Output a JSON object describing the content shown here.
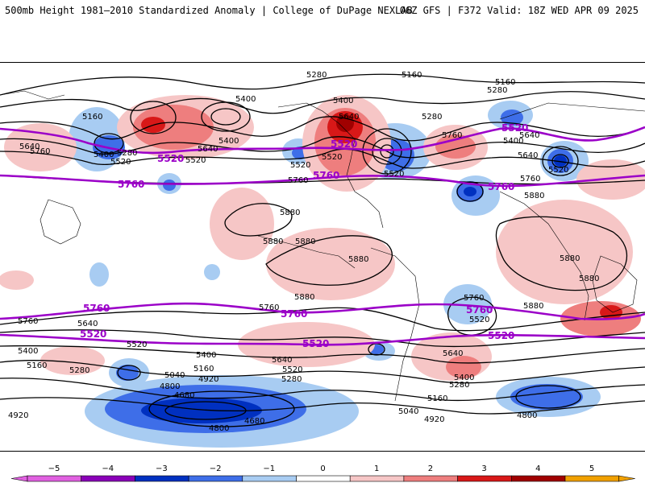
{
  "header": {
    "left": "500mb Height 1981–2010 Standardized Anomaly | College of DuPage NEXLAB",
    "right": "06Z GFS | F372 Valid: 18Z WED APR 09 2025"
  },
  "colors": {
    "c_neg5": "#e060e0",
    "c_neg4": "#8a00b8",
    "c_neg3": "#0030c0",
    "c_neg2": "#3e6ee8",
    "c_neg1": "#a8ccf2",
    "c_0": "#ffffff",
    "c_pos1": "#f6c6c6",
    "c_pos2": "#ee7e7e",
    "c_pos3": "#d81818",
    "c_pos4": "#a00000",
    "c_pos5": "#f0a000",
    "contour": "#000000",
    "highlight_contour": "#9b00c8"
  },
  "colorbar": {
    "ticks": [
      "−5",
      "−4",
      "−3",
      "−2",
      "−1",
      "0",
      "1",
      "2",
      "3",
      "4",
      "5"
    ]
  },
  "contour_labels": {
    "l5280a": "5280",
    "l5160a": "5160",
    "l5160b": "5160",
    "l5280b": "5280",
    "l5400a": "5400",
    "l5400b": "5400",
    "l5640a": "5640",
    "l5280c": "5280",
    "l5760a": "5760",
    "l5160c": "5160",
    "l5640b": "5640",
    "l5400c": "5400",
    "l5400d": "5400",
    "l5520a": "5520",
    "l5640c": "5640",
    "l5640d": "5640",
    "l5400e": "5400",
    "l5520b": "5520",
    "l5280d": "5280",
    "l5520c": "5520",
    "l5520d": "5520",
    "l5640e": "5640",
    "l5520e": "5520",
    "l5760b": "5760",
    "l5760c": "5760",
    "l5880a": "5880",
    "l5880b": "5880",
    "l5880c": "5880",
    "l5880d": "5880",
    "l5880e": "5880",
    "l5880f": "5880",
    "l5880g": "5880",
    "l5760d": "5760",
    "l5760e": "5760",
    "l5640f": "5640",
    "l5520f": "5520",
    "l5760f": "5760",
    "l5520g": "5520",
    "l5400f": "5400",
    "l5160d": "5160",
    "l5280e": "5280",
    "l5400g": "5400",
    "l5640g": "5640",
    "l5520h": "5520",
    "l5280f": "5280",
    "l5040a": "5040",
    "l5160e": "5160",
    "l4920a": "4920",
    "l4800a": "4800",
    "l4680a": "4680",
    "l4680b": "4680",
    "l4800b": "4800",
    "l4920b": "4920",
    "l5640h": "5640",
    "l5400h": "5400",
    "l5280g": "5280",
    "l5160f": "5160",
    "l5040b": "5040",
    "l4920c": "4920",
    "l4800c": "4800",
    "l5520i": "5520",
    "l5880h": "5880",
    "l5880i": "5880",
    "l5760g": "5760"
  },
  "highlight_labels": {
    "p5520a": "5520",
    "p5520b": "5520",
    "p5520c": "5520",
    "p5520d": "5520",
    "p5760a": "5760",
    "p5760b": "5760",
    "p5760c": "5760",
    "p5760d": "5760",
    "p5760e": "5760",
    "p5520e": "5520",
    "p5520f": "5520",
    "p5520g": "5520"
  }
}
